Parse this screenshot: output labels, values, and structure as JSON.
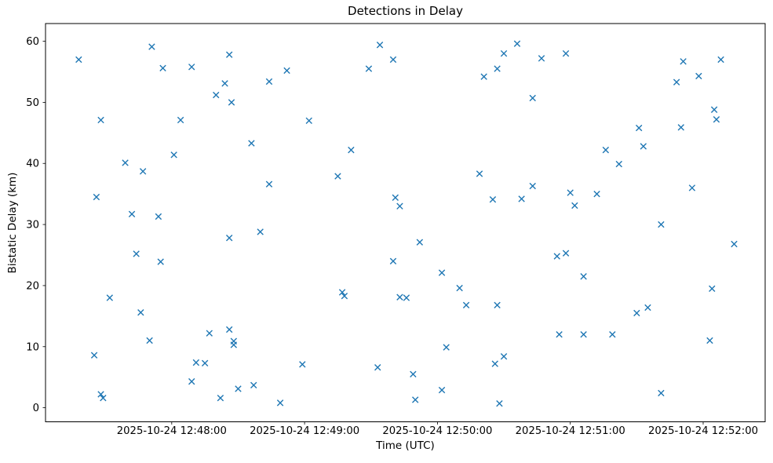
{
  "figure": {
    "title": "Detections in Delay",
    "xlabel": "Time (UTC)",
    "ylabel": "Bistatic Delay (km)",
    "background_color": "#ffffff",
    "spine_color": "#000000"
  },
  "chart_data": {
    "type": "scatter",
    "title": "Detections in Delay",
    "xlabel": "Time (UTC)",
    "ylabel": "Bistatic Delay (km)",
    "legend": null,
    "grid": false,
    "marker": "x",
    "marker_color": "#1f77b4",
    "date": "2025-10-24",
    "x_tick_labels": [
      "2025-10-24 12:48:00",
      "2025-10-24 12:49:00",
      "2025-10-24 12:50:00",
      "2025-10-24 12:51:00",
      "2025-10-24 12:52:00"
    ],
    "y_ticks": [
      0,
      10,
      20,
      30,
      40,
      50,
      60
    ],
    "xlim_time_utc": [
      "12:47:03",
      "12:52:28"
    ],
    "ylim": [
      -2.3,
      62.9
    ],
    "columns": [
      "time_utc",
      "bistatic_delay_km"
    ],
    "points": [
      [
        "12:47:51",
        59.1
      ],
      [
        "12:47:18",
        57.0
      ],
      [
        "12:47:56",
        55.6
      ],
      [
        "12:48:09",
        55.8
      ],
      [
        "12:48:26",
        57.8
      ],
      [
        "12:48:24",
        53.1
      ],
      [
        "12:48:20",
        51.2
      ],
      [
        "12:48:27",
        50.0
      ],
      [
        "12:47:28",
        47.1
      ],
      [
        "12:48:04",
        47.1
      ],
      [
        "12:48:01",
        41.4
      ],
      [
        "12:47:39",
        40.1
      ],
      [
        "12:47:47",
        38.7
      ],
      [
        "12:47:26",
        34.5
      ],
      [
        "12:47:42",
        31.7
      ],
      [
        "12:47:54",
        31.3
      ],
      [
        "12:49:34",
        59.4
      ],
      [
        "12:49:40",
        57.0
      ],
      [
        "12:49:29",
        55.5
      ],
      [
        "12:48:52",
        55.2
      ],
      [
        "12:48:44",
        53.4
      ],
      [
        "12:49:02",
        47.0
      ],
      [
        "12:48:36",
        43.3
      ],
      [
        "12:49:21",
        42.2
      ],
      [
        "12:49:15",
        37.9
      ],
      [
        "12:48:44",
        36.6
      ],
      [
        "12:49:41",
        34.4
      ],
      [
        "12:49:43",
        33.0
      ],
      [
        "12:50:36",
        59.6
      ],
      [
        "12:50:30",
        58.0
      ],
      [
        "12:50:58",
        58.0
      ],
      [
        "12:50:47",
        57.2
      ],
      [
        "12:50:27",
        55.5
      ],
      [
        "12:50:21",
        54.2
      ],
      [
        "12:50:43",
        50.7
      ],
      [
        "12:50:19",
        38.3
      ],
      [
        "12:50:43",
        36.3
      ],
      [
        "12:50:25",
        34.1
      ],
      [
        "12:50:38",
        34.2
      ],
      [
        "12:51:00",
        35.2
      ],
      [
        "12:51:12",
        35.0
      ],
      [
        "12:51:02",
        33.1
      ],
      [
        "12:51:51",
        56.7
      ],
      [
        "12:52:08",
        57.0
      ],
      [
        "12:51:58",
        54.3
      ],
      [
        "12:51:48",
        53.3
      ],
      [
        "12:52:05",
        48.8
      ],
      [
        "12:52:06",
        47.2
      ],
      [
        "12:51:31",
        45.8
      ],
      [
        "12:51:50",
        45.9
      ],
      [
        "12:51:33",
        42.8
      ],
      [
        "12:51:16",
        42.2
      ],
      [
        "12:51:22",
        39.9
      ],
      [
        "12:51:55",
        36.0
      ],
      [
        "12:48:26",
        27.8
      ],
      [
        "12:47:44",
        25.2
      ],
      [
        "12:47:55",
        23.9
      ],
      [
        "12:47:32",
        18.0
      ],
      [
        "12:47:46",
        15.6
      ],
      [
        "12:47:50",
        11.0
      ],
      [
        "12:48:17",
        12.2
      ],
      [
        "12:48:26",
        12.8
      ],
      [
        "12:48:28",
        10.9
      ],
      [
        "12:48:28",
        10.3
      ],
      [
        "12:47:25",
        8.6
      ],
      [
        "12:48:11",
        7.4
      ],
      [
        "12:48:15",
        7.3
      ],
      [
        "12:48:09",
        4.3
      ],
      [
        "12:47:28",
        2.2
      ],
      [
        "12:47:29",
        1.6
      ],
      [
        "12:48:22",
        1.6
      ],
      [
        "12:48:40",
        28.8
      ],
      [
        "12:49:52",
        27.1
      ],
      [
        "12:49:40",
        24.0
      ],
      [
        "12:49:17",
        18.9
      ],
      [
        "12:49:18",
        18.3
      ],
      [
        "12:49:43",
        18.1
      ],
      [
        "12:49:46",
        18.0
      ],
      [
        "12:48:59",
        7.1
      ],
      [
        "12:49:33",
        6.6
      ],
      [
        "12:49:49",
        5.5
      ],
      [
        "12:48:37",
        3.7
      ],
      [
        "12:48:30",
        3.1
      ],
      [
        "12:48:49",
        0.8
      ],
      [
        "12:49:50",
        1.3
      ],
      [
        "12:50:54",
        24.8
      ],
      [
        "12:50:58",
        25.3
      ],
      [
        "12:50:02",
        22.1
      ],
      [
        "12:51:06",
        21.5
      ],
      [
        "12:50:10",
        19.6
      ],
      [
        "12:50:13",
        16.8
      ],
      [
        "12:50:27",
        16.8
      ],
      [
        "12:50:55",
        12.0
      ],
      [
        "12:51:06",
        12.0
      ],
      [
        "12:50:04",
        9.9
      ],
      [
        "12:50:30",
        8.4
      ],
      [
        "12:50:26",
        7.2
      ],
      [
        "12:50:02",
        2.9
      ],
      [
        "12:50:28",
        0.7
      ],
      [
        "12:51:41",
        30.0
      ],
      [
        "12:52:14",
        26.8
      ],
      [
        "12:52:04",
        19.5
      ],
      [
        "12:51:35",
        16.4
      ],
      [
        "12:51:30",
        15.5
      ],
      [
        "12:51:19",
        12.0
      ],
      [
        "12:52:03",
        11.0
      ],
      [
        "12:51:41",
        2.4
      ]
    ]
  }
}
